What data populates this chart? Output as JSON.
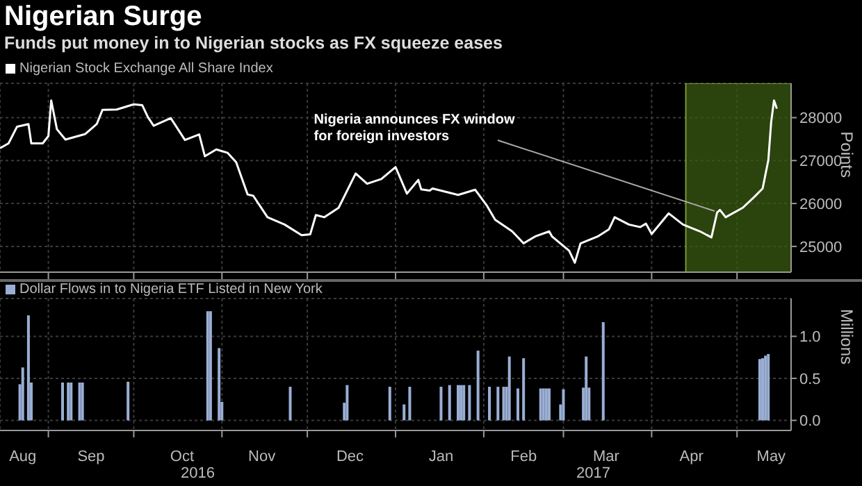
{
  "chart_data": [
    {
      "type": "line",
      "title": "Nigerian Surge",
      "subtitle": "Funds put money in to Nigerian stocks as FX squeeze eases",
      "ylabel": "Points",
      "x": [
        "2016-08-15",
        "2016-08-18",
        "2016-08-21",
        "2016-08-25",
        "2016-08-26",
        "2016-08-30",
        "2016-09-01",
        "2016-09-02",
        "2016-09-04",
        "2016-09-07",
        "2016-09-14",
        "2016-09-18",
        "2016-09-20",
        "2016-09-25",
        "2016-10-01",
        "2016-10-04",
        "2016-10-06",
        "2016-10-08",
        "2016-10-14",
        "2016-10-19",
        "2016-10-24",
        "2016-10-26",
        "2016-10-30",
        "2016-11-03",
        "2016-11-06",
        "2016-11-10",
        "2016-11-12",
        "2016-11-17",
        "2016-11-23",
        "2016-11-29",
        "2016-12-02",
        "2016-12-04",
        "2016-12-07",
        "2016-12-12",
        "2016-12-18",
        "2016-12-22",
        "2016-12-27",
        "2017-01-01",
        "2017-01-05",
        "2017-01-09",
        "2017-01-10",
        "2017-01-13",
        "2017-01-14",
        "2017-01-23",
        "2017-01-29",
        "2017-02-02",
        "2017-02-05",
        "2017-02-11",
        "2017-02-15",
        "2017-02-19",
        "2017-02-24",
        "2017-02-25",
        "2017-03-03",
        "2017-03-05",
        "2017-03-07",
        "2017-03-13",
        "2017-03-17",
        "2017-03-19",
        "2017-03-24",
        "2017-03-28",
        "2017-03-30",
        "2017-04-01",
        "2017-04-07",
        "2017-04-12",
        "2017-04-18",
        "2017-04-22",
        "2017-04-24",
        "2017-04-25",
        "2017-04-27",
        "2017-05-03",
        "2017-05-07",
        "2017-05-10",
        "2017-05-12",
        "2017-05-13",
        "2017-05-14",
        "2017-05-15"
      ],
      "series": [
        {
          "name": "Nigerian Stock Exchange All Share Index",
          "color": "#ffffff",
          "values": [
            27290,
            27400,
            27790,
            27850,
            27400,
            27400,
            27570,
            28400,
            27730,
            27490,
            27620,
            27850,
            28180,
            28190,
            28310,
            28290,
            28010,
            27810,
            27990,
            27480,
            27610,
            27100,
            27260,
            27180,
            26960,
            26210,
            26180,
            25680,
            25510,
            25260,
            25280,
            25730,
            25680,
            25900,
            26700,
            26460,
            26570,
            26850,
            26230,
            26550,
            26330,
            26300,
            26350,
            26200,
            26320,
            25960,
            25620,
            25350,
            25070,
            25230,
            25350,
            25230,
            24900,
            24620,
            25070,
            25230,
            25400,
            25680,
            25510,
            25450,
            25530,
            25290,
            25770,
            25510,
            25350,
            25210,
            25790,
            25850,
            25680,
            25900,
            26150,
            26350,
            27010,
            27900,
            28400,
            28210
          ]
        }
      ],
      "xlim": [
        "2016-08-15",
        "2017-05-20"
      ],
      "xticks": [
        {
          "value": "2016-09-01",
          "label": null
        },
        {
          "value": "2016-10-01",
          "label": null
        },
        {
          "value": "2016-11-01",
          "label": null
        },
        {
          "value": "2016-12-01",
          "label": null
        },
        {
          "value": "2017-01-01",
          "label": null
        },
        {
          "value": "2017-02-01",
          "label": null
        },
        {
          "value": "2017-03-01",
          "label": null
        },
        {
          "value": "2017-04-01",
          "label": null
        },
        {
          "value": "2017-05-01",
          "label": null
        }
      ],
      "ylim": [
        24400,
        28800
      ],
      "yticks": [
        25000,
        26000,
        27000,
        28000
      ],
      "grid": true,
      "legend": "top left",
      "tick_labels": "y",
      "annotations": [
        {
          "text": "Nigeria announces FX window\nfor foreign investors",
          "x": "2017-04-24",
          "y": 25750
        }
      ],
      "bands": [
        {
          "axis": "x",
          "from": "2017-04-13",
          "to": "2017-05-20",
          "color": "#3a5a12"
        }
      ]
    },
    {
      "type": "bar",
      "ylabel": "Millions",
      "x": [
        "2016-08-22",
        "2016-08-23",
        "2016-08-25",
        "2016-08-26",
        "2016-09-06",
        "2016-09-08",
        "2016-09-09",
        "2016-09-12",
        "2016-09-13",
        "2016-09-29",
        "2016-10-27",
        "2016-10-28",
        "2016-10-31",
        "2016-11-01",
        "2016-11-25",
        "2016-12-14",
        "2016-12-15",
        "2016-12-30",
        "2017-01-04",
        "2017-01-06",
        "2017-01-17",
        "2017-01-20",
        "2017-01-23",
        "2017-01-24",
        "2017-01-25",
        "2017-01-27",
        "2017-01-30",
        "2017-02-03",
        "2017-02-06",
        "2017-02-08",
        "2017-02-09",
        "2017-02-10",
        "2017-02-13",
        "2017-02-15",
        "2017-02-21",
        "2017-02-22",
        "2017-02-23",
        "2017-02-24",
        "2017-02-28",
        "2017-03-01",
        "2017-03-08",
        "2017-03-09",
        "2017-03-10",
        "2017-03-15",
        "2017-05-09",
        "2017-05-10",
        "2017-05-11",
        "2017-05-12"
      ],
      "series": [
        {
          "name": "Dollar Flows in to Nigeria ETF Listed in New York",
          "color": "#9aaed4",
          "values": [
            0.43,
            0.63,
            1.25,
            0.45,
            0.45,
            0.45,
            0.45,
            0.45,
            0.45,
            0.46,
            1.3,
            1.3,
            0.86,
            0.22,
            0.4,
            0.21,
            0.42,
            0.4,
            0.19,
            0.4,
            0.4,
            0.42,
            0.42,
            0.42,
            0.42,
            0.42,
            0.83,
            0.4,
            0.4,
            0.4,
            0.4,
            0.76,
            0.38,
            0.74,
            0.38,
            0.38,
            0.38,
            0.38,
            0.19,
            0.37,
            0.39,
            0.76,
            0.39,
            1.17,
            0.73,
            0.74,
            0.77,
            0.79
          ]
        }
      ],
      "xlim": [
        "2016-08-15",
        "2017-05-20"
      ],
      "xticks": [
        {
          "value": "2016-09-01",
          "label": null
        },
        {
          "value": "2016-10-01",
          "label": null
        },
        {
          "value": "2016-11-01",
          "label": null
        },
        {
          "value": "2016-12-01",
          "label": null
        },
        {
          "value": "2017-01-01",
          "label": null
        },
        {
          "value": "2017-02-01",
          "label": null
        },
        {
          "value": "2017-03-01",
          "label": null
        },
        {
          "value": "2017-04-01",
          "label": null
        },
        {
          "value": "2017-05-01",
          "label": null
        },
        {
          "value": "2016-08-23",
          "label": "Aug"
        },
        {
          "value": "2016-09-16",
          "label": "Sep"
        },
        {
          "value": "2016-10-18",
          "label": "Oct"
        },
        {
          "value": "2016-11-15",
          "label": "Nov"
        },
        {
          "value": "2016-12-16",
          "label": "Dec"
        },
        {
          "value": "2017-01-17",
          "label": "Jan"
        },
        {
          "value": "2017-02-15",
          "label": "Feb"
        },
        {
          "value": "2017-03-16",
          "label": "Mar"
        },
        {
          "value": "2017-04-15",
          "label": "Apr"
        },
        {
          "value": "2017-05-13",
          "label": "May"
        }
      ],
      "ylim": [
        -0.12,
        1.45
      ],
      "yticks": [
        {
          "value": 0,
          "label": "0.0"
        },
        {
          "value": 0.5,
          "label": "0.5"
        },
        {
          "value": 1,
          "label": "1.0"
        }
      ],
      "grid": true,
      "legend": "top left",
      "annotations": [
        "2016",
        "2017"
      ]
    }
  ]
}
